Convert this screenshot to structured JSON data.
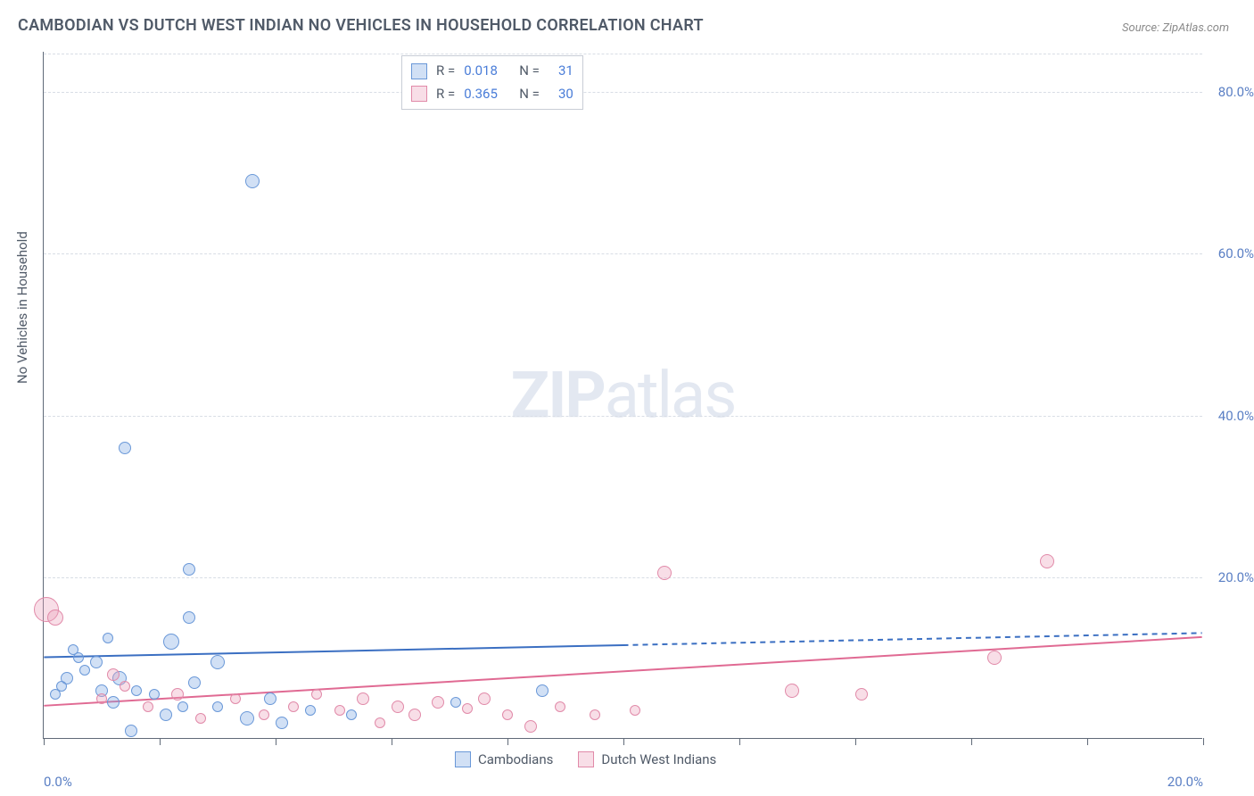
{
  "title": "CAMBODIAN VS DUTCH WEST INDIAN NO VEHICLES IN HOUSEHOLD CORRELATION CHART",
  "source_prefix": "Source: ",
  "source_name": "ZipAtlas.com",
  "ylabel": "No Vehicles in Household",
  "watermark": {
    "bold": "ZIP",
    "light": "atlas"
  },
  "chart": {
    "type": "scatter",
    "background_color": "#ffffff",
    "grid_color": "#d8dde5",
    "axis_color": "#606a78",
    "text_color": "#505a68",
    "value_color": "#5a7fc4",
    "xlim": [
      0,
      20
    ],
    "ylim": [
      0,
      85
    ],
    "xticks": [
      0,
      10,
      20
    ],
    "xtick_labels": [
      "0.0%",
      "",
      "20.0%"
    ],
    "yticks": [
      20,
      40,
      60,
      80
    ],
    "ytick_labels": [
      "20.0%",
      "40.0%",
      "60.0%",
      "80.0%"
    ],
    "minor_xticks": [
      2,
      4,
      6,
      8,
      12,
      14,
      16,
      18
    ],
    "series": [
      {
        "name": "Cambodians",
        "fill": "rgba(122,165,226,0.35)",
        "stroke": "#6a98d8",
        "trend_color": "#3b6fc2",
        "r": 0.018,
        "n": 31,
        "trend": {
          "x1": 0,
          "y1": 10.0,
          "x2": 10,
          "y2": 11.5,
          "extend_x": 20,
          "extend_y": 13.0
        },
        "points": [
          {
            "x": 3.6,
            "y": 69.0,
            "r": 8
          },
          {
            "x": 1.4,
            "y": 36.0,
            "r": 7
          },
          {
            "x": 2.5,
            "y": 21.0,
            "r": 7
          },
          {
            "x": 2.5,
            "y": 15.0,
            "r": 7
          },
          {
            "x": 1.1,
            "y": 12.5,
            "r": 6
          },
          {
            "x": 0.5,
            "y": 11.0,
            "r": 6
          },
          {
            "x": 2.2,
            "y": 12.0,
            "r": 9
          },
          {
            "x": 0.9,
            "y": 9.5,
            "r": 7
          },
          {
            "x": 0.7,
            "y": 8.5,
            "r": 6
          },
          {
            "x": 0.4,
            "y": 7.5,
            "r": 7
          },
          {
            "x": 0.3,
            "y": 6.5,
            "r": 6
          },
          {
            "x": 0.2,
            "y": 5.5,
            "r": 6
          },
          {
            "x": 1.3,
            "y": 7.5,
            "r": 8
          },
          {
            "x": 1.0,
            "y": 6.0,
            "r": 7
          },
          {
            "x": 1.6,
            "y": 6.0,
            "r": 6
          },
          {
            "x": 1.2,
            "y": 4.5,
            "r": 7
          },
          {
            "x": 1.5,
            "y": 1.0,
            "r": 7
          },
          {
            "x": 2.1,
            "y": 3.0,
            "r": 7
          },
          {
            "x": 1.9,
            "y": 5.5,
            "r": 6
          },
          {
            "x": 2.6,
            "y": 7.0,
            "r": 7
          },
          {
            "x": 2.4,
            "y": 4.0,
            "r": 6
          },
          {
            "x": 3.0,
            "y": 9.5,
            "r": 8
          },
          {
            "x": 3.0,
            "y": 4.0,
            "r": 6
          },
          {
            "x": 3.5,
            "y": 2.5,
            "r": 8
          },
          {
            "x": 3.9,
            "y": 5.0,
            "r": 7
          },
          {
            "x": 4.1,
            "y": 2.0,
            "r": 7
          },
          {
            "x": 4.6,
            "y": 3.5,
            "r": 6
          },
          {
            "x": 5.3,
            "y": 3.0,
            "r": 6
          },
          {
            "x": 7.1,
            "y": 4.5,
            "r": 6
          },
          {
            "x": 8.6,
            "y": 6.0,
            "r": 7
          },
          {
            "x": 0.6,
            "y": 10.0,
            "r": 6
          }
        ]
      },
      {
        "name": "Dutch West Indians",
        "fill": "rgba(236,160,186,0.35)",
        "stroke": "#e18aa9",
        "trend_color": "#e06a93",
        "r": 0.365,
        "n": 30,
        "trend": {
          "x1": 0,
          "y1": 4.0,
          "x2": 20,
          "y2": 12.5
        },
        "points": [
          {
            "x": 0.05,
            "y": 16.0,
            "r": 14
          },
          {
            "x": 0.2,
            "y": 15.0,
            "r": 9
          },
          {
            "x": 1.2,
            "y": 8.0,
            "r": 7
          },
          {
            "x": 1.4,
            "y": 6.5,
            "r": 6
          },
          {
            "x": 1.0,
            "y": 5.0,
            "r": 6
          },
          {
            "x": 1.8,
            "y": 4.0,
            "r": 6
          },
          {
            "x": 2.3,
            "y": 5.5,
            "r": 7
          },
          {
            "x": 2.7,
            "y": 2.5,
            "r": 6
          },
          {
            "x": 3.3,
            "y": 5.0,
            "r": 6
          },
          {
            "x": 3.8,
            "y": 3.0,
            "r": 6
          },
          {
            "x": 4.3,
            "y": 4.0,
            "r": 6
          },
          {
            "x": 4.7,
            "y": 5.5,
            "r": 6
          },
          {
            "x": 5.1,
            "y": 3.5,
            "r": 6
          },
          {
            "x": 5.5,
            "y": 5.0,
            "r": 7
          },
          {
            "x": 5.8,
            "y": 2.0,
            "r": 6
          },
          {
            "x": 6.1,
            "y": 4.0,
            "r": 7
          },
          {
            "x": 6.4,
            "y": 3.0,
            "r": 7
          },
          {
            "x": 6.8,
            "y": 4.5,
            "r": 7
          },
          {
            "x": 7.3,
            "y": 3.8,
            "r": 6
          },
          {
            "x": 7.6,
            "y": 5.0,
            "r": 7
          },
          {
            "x": 8.0,
            "y": 3.0,
            "r": 6
          },
          {
            "x": 8.4,
            "y": 1.5,
            "r": 7
          },
          {
            "x": 8.9,
            "y": 4.0,
            "r": 6
          },
          {
            "x": 10.2,
            "y": 3.5,
            "r": 6
          },
          {
            "x": 10.7,
            "y": 20.5,
            "r": 8
          },
          {
            "x": 12.9,
            "y": 6.0,
            "r": 8
          },
          {
            "x": 14.1,
            "y": 5.5,
            "r": 7
          },
          {
            "x": 16.4,
            "y": 10.0,
            "r": 8
          },
          {
            "x": 17.3,
            "y": 22.0,
            "r": 8
          },
          {
            "x": 9.5,
            "y": 3.0,
            "r": 6
          }
        ]
      }
    ]
  },
  "r_legend": {
    "rows": [
      {
        "r_label": "R =",
        "r_value": "0.018",
        "n_label": "N =",
        "n_value": "31"
      },
      {
        "r_label": "R =",
        "r_value": "0.365",
        "n_label": "N =",
        "n_value": "30"
      }
    ]
  },
  "bottom_legend": {
    "items": [
      "Cambodians",
      "Dutch West Indians"
    ]
  }
}
